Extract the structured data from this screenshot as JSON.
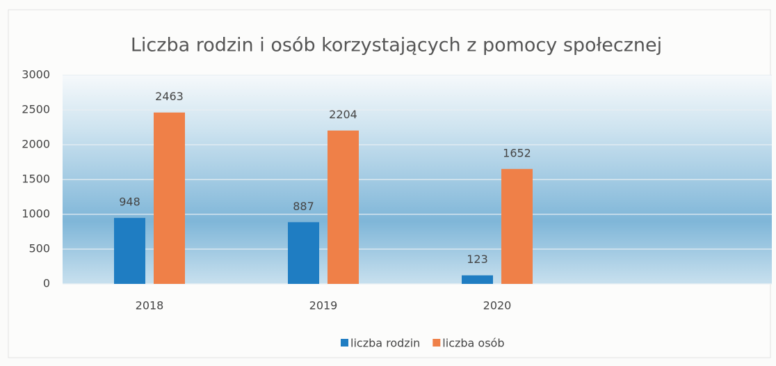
{
  "chart_data": {
    "type": "bar",
    "title": "Liczba rodzin i osób korzystających z pomocy społecznej",
    "categories": [
      "2018",
      "2019",
      "2020"
    ],
    "series": [
      {
        "name": "liczba rodzin",
        "color": "#1f7dc2",
        "values": [
          948,
          887,
          123
        ]
      },
      {
        "name": "liczba osób",
        "color": "#ef8048",
        "values": [
          2463,
          2204,
          1652
        ]
      }
    ],
    "ylim": [
      0,
      3000
    ],
    "yticks": [
      0,
      500,
      1000,
      1500,
      2000,
      2500,
      3000
    ],
    "grid": true,
    "legend": "bottom"
  }
}
